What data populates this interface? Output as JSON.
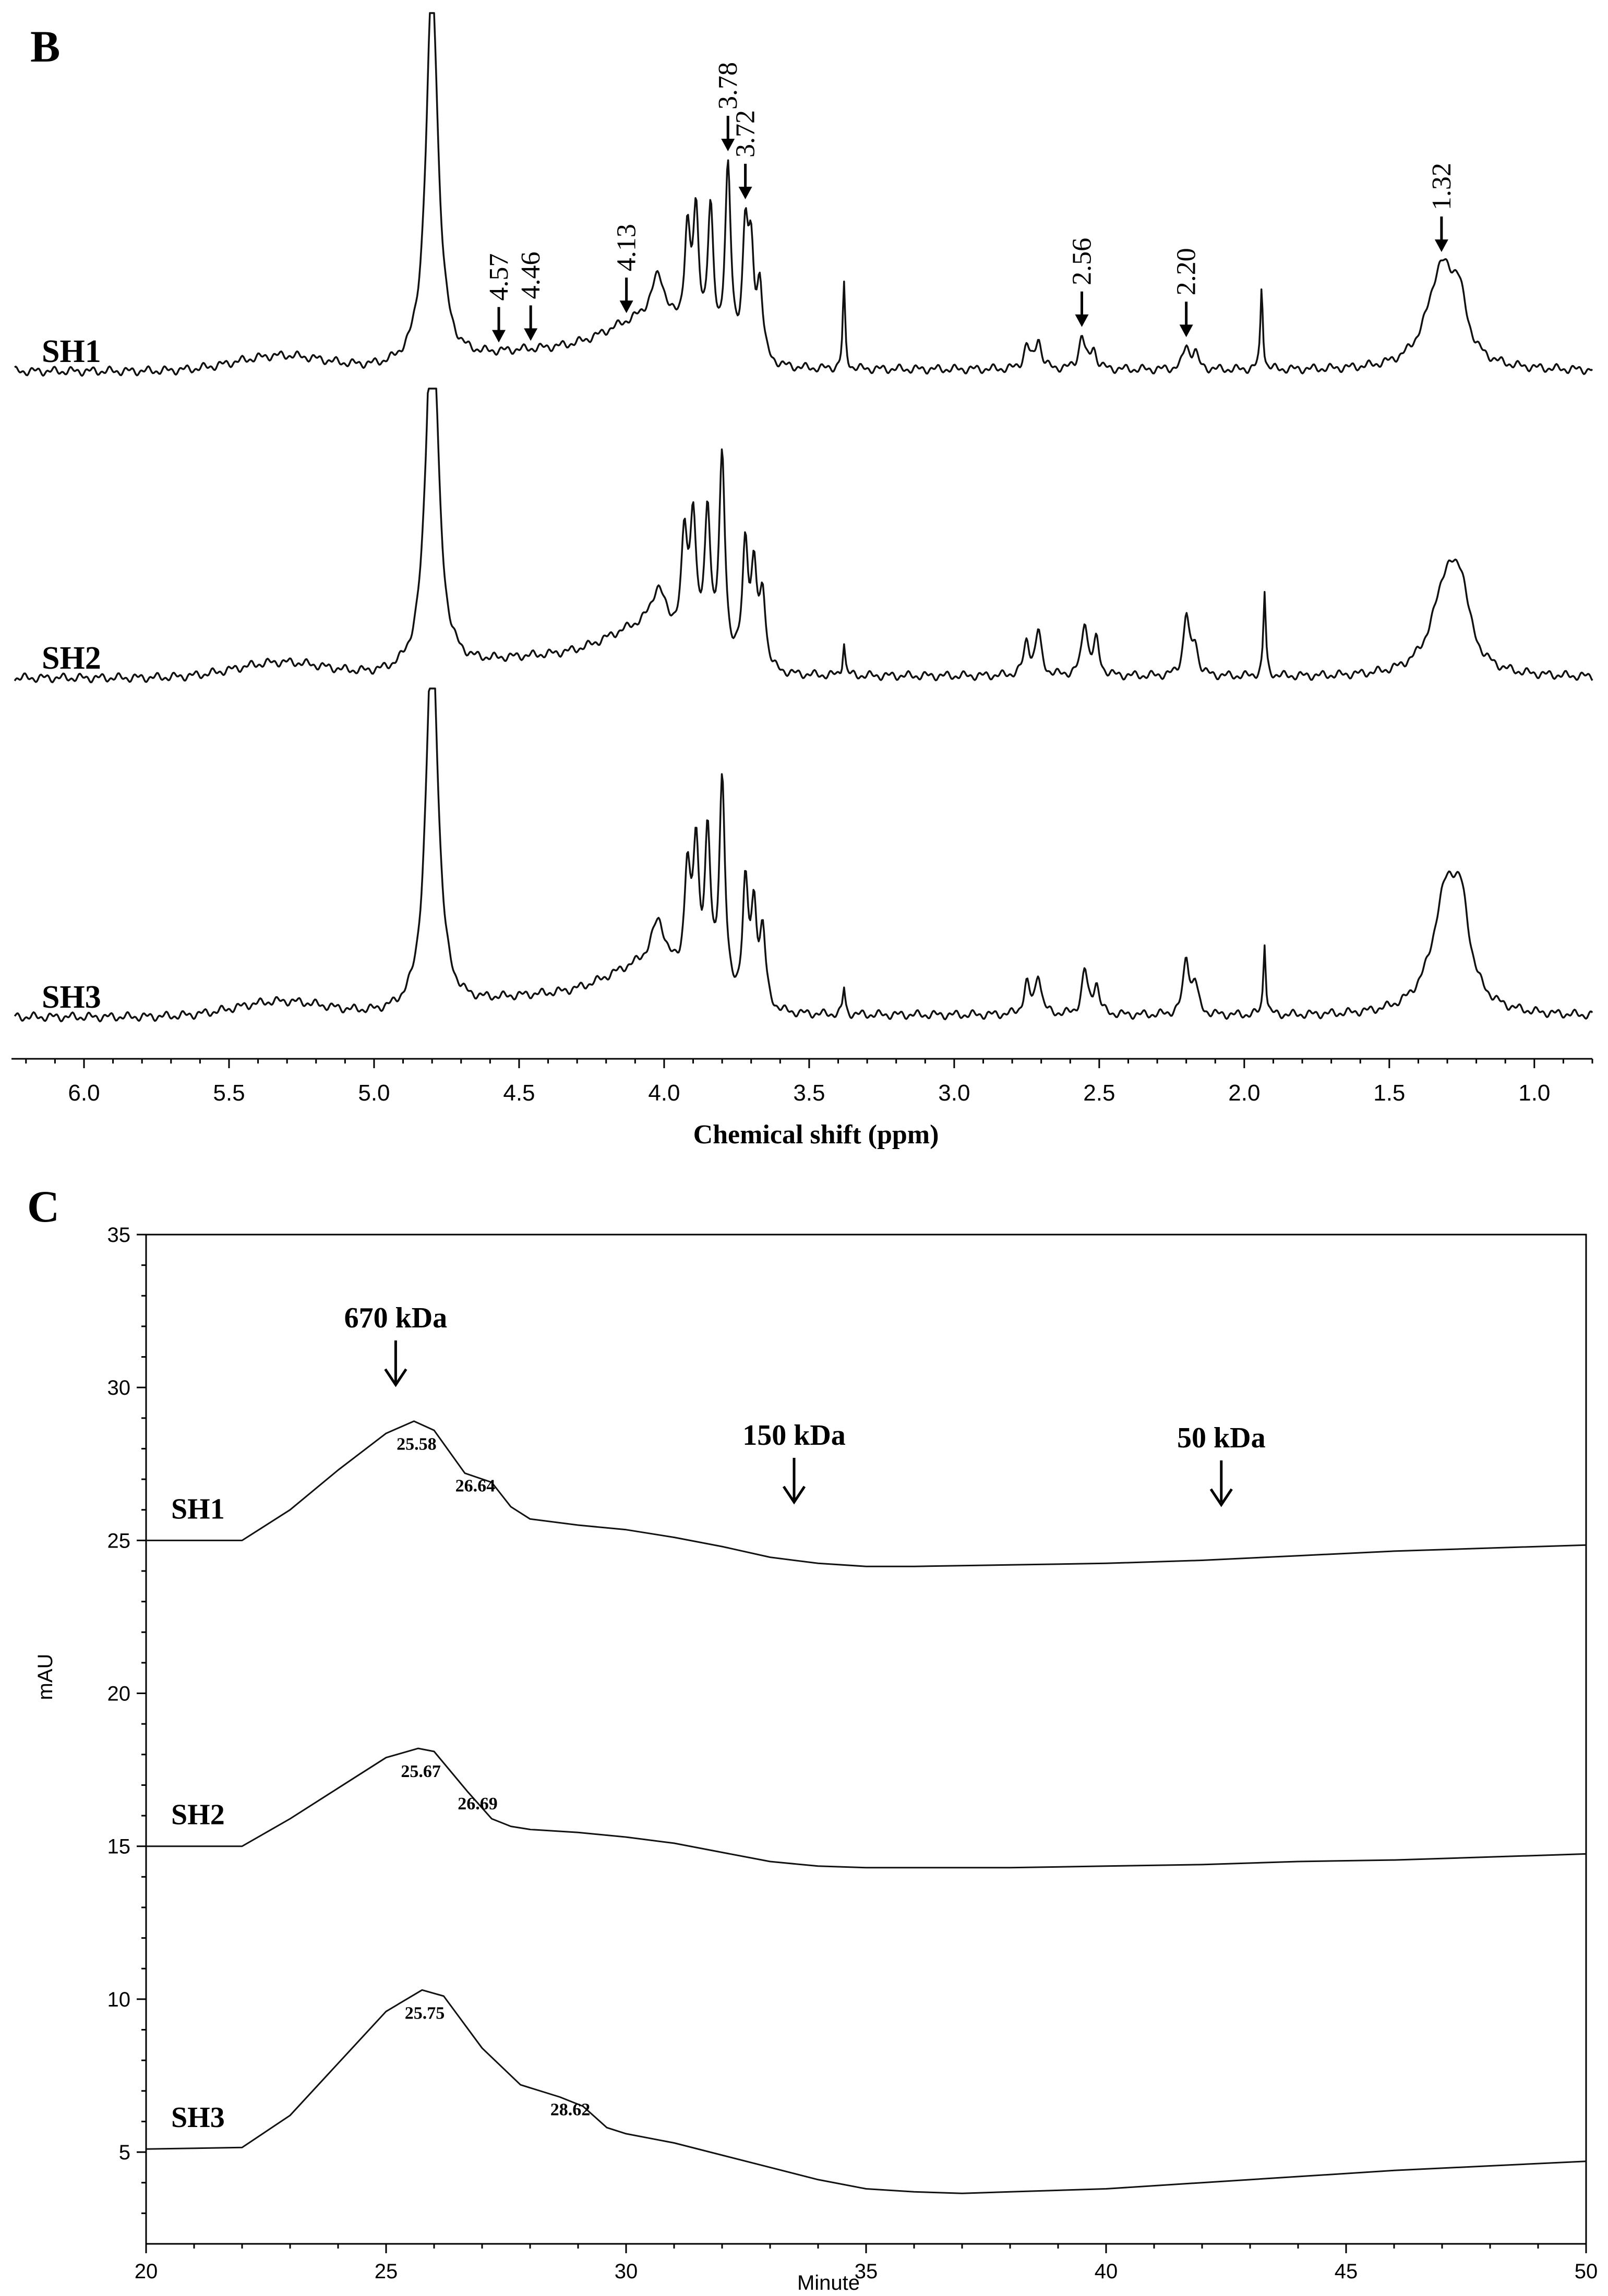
{
  "chart_data": [
    {
      "id": "B",
      "type": "line",
      "panel_label": "B",
      "title": "",
      "xlabel": "Chemical shift (ppm)",
      "ylabel": "",
      "xlim": [
        6.25,
        0.8
      ],
      "x_reversed": true,
      "xticks": [
        6.0,
        5.5,
        5.0,
        4.5,
        4.0,
        3.5,
        3.0,
        2.5,
        2.0,
        1.5,
        1.0
      ],
      "xtick_labels": [
        "6.0",
        "5.5",
        "5.0",
        "4.5",
        "4.0",
        "3.5",
        "3.0",
        "2.5",
        "2.0",
        "1.5",
        "1.0"
      ],
      "grid": false,
      "series": [
        {
          "name": "SH1",
          "peaks": [
            {
              "x": 4.8,
              "height": 1.15,
              "width": 0.025
            },
            {
              "x": 3.78,
              "height": 0.55,
              "width": 0.012
            },
            {
              "x": 3.84,
              "height": 0.4,
              "width": 0.012
            },
            {
              "x": 3.89,
              "height": 0.36,
              "width": 0.012
            },
            {
              "x": 3.92,
              "height": 0.3,
              "width": 0.012
            },
            {
              "x": 3.72,
              "height": 0.36,
              "width": 0.012
            },
            {
              "x": 3.7,
              "height": 0.28,
              "width": 0.012
            },
            {
              "x": 3.67,
              "height": 0.22,
              "width": 0.012
            },
            {
              "x": 4.02,
              "height": 0.14,
              "width": 0.03
            },
            {
              "x": 3.38,
              "height": 0.25,
              "width": 0.005
            },
            {
              "x": 2.75,
              "height": 0.07,
              "width": 0.012
            },
            {
              "x": 2.71,
              "height": 0.09,
              "width": 0.012
            },
            {
              "x": 2.56,
              "height": 0.1,
              "width": 0.012
            },
            {
              "x": 2.52,
              "height": 0.06,
              "width": 0.012
            },
            {
              "x": 2.2,
              "height": 0.07,
              "width": 0.012
            },
            {
              "x": 2.17,
              "height": 0.05,
              "width": 0.012
            },
            {
              "x": 1.94,
              "height": 0.25,
              "width": 0.005
            },
            {
              "x": 1.32,
              "height": 0.3,
              "width": 0.06
            },
            {
              "x": 1.26,
              "height": 0.14,
              "width": 0.03
            }
          ],
          "annotations": [
            {
              "label": "4.57",
              "x": 4.57
            },
            {
              "label": "4.46",
              "x": 4.46
            },
            {
              "label": "4.13",
              "x": 4.13
            },
            {
              "label": "3.78",
              "x": 3.78
            },
            {
              "label": "3.72",
              "x": 3.72
            },
            {
              "label": "2.56",
              "x": 2.56
            },
            {
              "label": "2.20",
              "x": 2.2
            },
            {
              "label": "1.32",
              "x": 1.32
            }
          ]
        },
        {
          "name": "SH2",
          "peaks": [
            {
              "x": 4.8,
              "height": 1.15,
              "width": 0.025
            },
            {
              "x": 3.8,
              "height": 0.6,
              "width": 0.012
            },
            {
              "x": 3.85,
              "height": 0.42,
              "width": 0.012
            },
            {
              "x": 3.9,
              "height": 0.38,
              "width": 0.012
            },
            {
              "x": 3.93,
              "height": 0.3,
              "width": 0.012
            },
            {
              "x": 3.72,
              "height": 0.36,
              "width": 0.012
            },
            {
              "x": 3.69,
              "height": 0.28,
              "width": 0.012
            },
            {
              "x": 3.66,
              "height": 0.22,
              "width": 0.012
            },
            {
              "x": 4.02,
              "height": 0.12,
              "width": 0.03
            },
            {
              "x": 3.38,
              "height": 0.1,
              "width": 0.005
            },
            {
              "x": 2.75,
              "height": 0.1,
              "width": 0.012
            },
            {
              "x": 2.71,
              "height": 0.13,
              "width": 0.012
            },
            {
              "x": 2.55,
              "height": 0.16,
              "width": 0.012
            },
            {
              "x": 2.51,
              "height": 0.1,
              "width": 0.012
            },
            {
              "x": 2.2,
              "height": 0.18,
              "width": 0.012
            },
            {
              "x": 2.17,
              "height": 0.09,
              "width": 0.012
            },
            {
              "x": 1.93,
              "height": 0.25,
              "width": 0.005
            },
            {
              "x": 1.3,
              "height": 0.3,
              "width": 0.06
            },
            {
              "x": 1.25,
              "height": 0.15,
              "width": 0.03
            }
          ],
          "annotations": []
        },
        {
          "name": "SH3",
          "peaks": [
            {
              "x": 4.8,
              "height": 1.15,
              "width": 0.025
            },
            {
              "x": 3.8,
              "height": 0.65,
              "width": 0.012
            },
            {
              "x": 3.85,
              "height": 0.45,
              "width": 0.012
            },
            {
              "x": 3.89,
              "height": 0.4,
              "width": 0.012
            },
            {
              "x": 3.92,
              "height": 0.32,
              "width": 0.012
            },
            {
              "x": 3.72,
              "height": 0.35,
              "width": 0.012
            },
            {
              "x": 3.69,
              "height": 0.28,
              "width": 0.012
            },
            {
              "x": 3.66,
              "height": 0.22,
              "width": 0.012
            },
            {
              "x": 4.02,
              "height": 0.14,
              "width": 0.03
            },
            {
              "x": 3.38,
              "height": 0.08,
              "width": 0.005
            },
            {
              "x": 2.75,
              "height": 0.09,
              "width": 0.012
            },
            {
              "x": 2.71,
              "height": 0.12,
              "width": 0.012
            },
            {
              "x": 2.55,
              "height": 0.13,
              "width": 0.012
            },
            {
              "x": 2.51,
              "height": 0.09,
              "width": 0.012
            },
            {
              "x": 2.2,
              "height": 0.17,
              "width": 0.012
            },
            {
              "x": 2.17,
              "height": 0.09,
              "width": 0.012
            },
            {
              "x": 1.93,
              "height": 0.22,
              "width": 0.005
            },
            {
              "x": 1.3,
              "height": 0.38,
              "width": 0.06
            },
            {
              "x": 1.25,
              "height": 0.18,
              "width": 0.03
            }
          ],
          "annotations": []
        }
      ]
    },
    {
      "id": "C",
      "type": "line",
      "panel_label": "C",
      "title": "",
      "xlabel": "Minute",
      "ylabel": "mAU",
      "xlim": [
        20,
        50
      ],
      "ylim": [
        2,
        35
      ],
      "xticks": [
        20,
        25,
        30,
        35,
        40,
        45,
        50
      ],
      "xtick_labels": [
        "20",
        "25",
        "30",
        "35",
        "40",
        "45",
        "50"
      ],
      "yticks": [
        5,
        10,
        15,
        20,
        25,
        30,
        35
      ],
      "ytick_labels": [
        "5",
        "10",
        "15",
        "20",
        "25",
        "30",
        "35"
      ],
      "grid": false,
      "markers": [
        {
          "label": "670 kDa",
          "x": 25.2
        },
        {
          "label": "150 kDa",
          "x": 33.5
        },
        {
          "label": "50 kDa",
          "x": 42.4
        }
      ],
      "series": [
        {
          "name": "SH1",
          "x": [
            20,
            22,
            23,
            24,
            25,
            25.58,
            26,
            26.64,
            27.2,
            27.6,
            28,
            29,
            30,
            31,
            32,
            33,
            34,
            35,
            36,
            38,
            40,
            42,
            44,
            46,
            48,
            50
          ],
          "y": [
            25,
            25,
            26,
            27.3,
            28.5,
            28.9,
            28.6,
            27.2,
            26.9,
            26.1,
            25.7,
            25.5,
            25.35,
            25.1,
            24.8,
            24.45,
            24.25,
            24.15,
            24.15,
            24.2,
            24.25,
            24.35,
            24.5,
            24.65,
            24.75,
            24.85
          ],
          "peak_labels": [
            {
              "x": 25.58,
              "label": "25.58"
            },
            {
              "x": 26.64,
              "label": "26.64"
            }
          ]
        },
        {
          "name": "SH2",
          "x": [
            20,
            22,
            23,
            24,
            25,
            25.67,
            26,
            26.69,
            27.2,
            27.6,
            28,
            29,
            30,
            31,
            32,
            33,
            34,
            35,
            36,
            38,
            40,
            42,
            44,
            46,
            48,
            50
          ],
          "y": [
            15,
            15,
            15.9,
            16.9,
            17.9,
            18.2,
            18.1,
            16.8,
            15.9,
            15.65,
            15.55,
            15.45,
            15.3,
            15.1,
            14.8,
            14.5,
            14.35,
            14.3,
            14.3,
            14.3,
            14.35,
            14.4,
            14.5,
            14.55,
            14.65,
            14.75
          ],
          "peak_labels": [
            {
              "x": 25.67,
              "label": "25.67"
            },
            {
              "x": 26.69,
              "label": "26.69"
            }
          ]
        },
        {
          "name": "SH3",
          "x": [
            20,
            22,
            23,
            24,
            25,
            25.75,
            26.2,
            27,
            27.8,
            28.62,
            29.1,
            29.6,
            30,
            31,
            32,
            33,
            34,
            35,
            36,
            37,
            38,
            40,
            42,
            44,
            46,
            48,
            50
          ],
          "y": [
            5.1,
            5.15,
            6.2,
            7.9,
            9.6,
            10.3,
            10.1,
            8.4,
            7.2,
            6.8,
            6.5,
            5.8,
            5.6,
            5.3,
            4.9,
            4.5,
            4.1,
            3.8,
            3.7,
            3.65,
            3.7,
            3.8,
            4.0,
            4.2,
            4.4,
            4.55,
            4.7
          ],
          "peak_labels": [
            {
              "x": 25.75,
              "label": "25.75"
            },
            {
              "x": 28.62,
              "label": "28.62"
            }
          ]
        }
      ]
    }
  ]
}
